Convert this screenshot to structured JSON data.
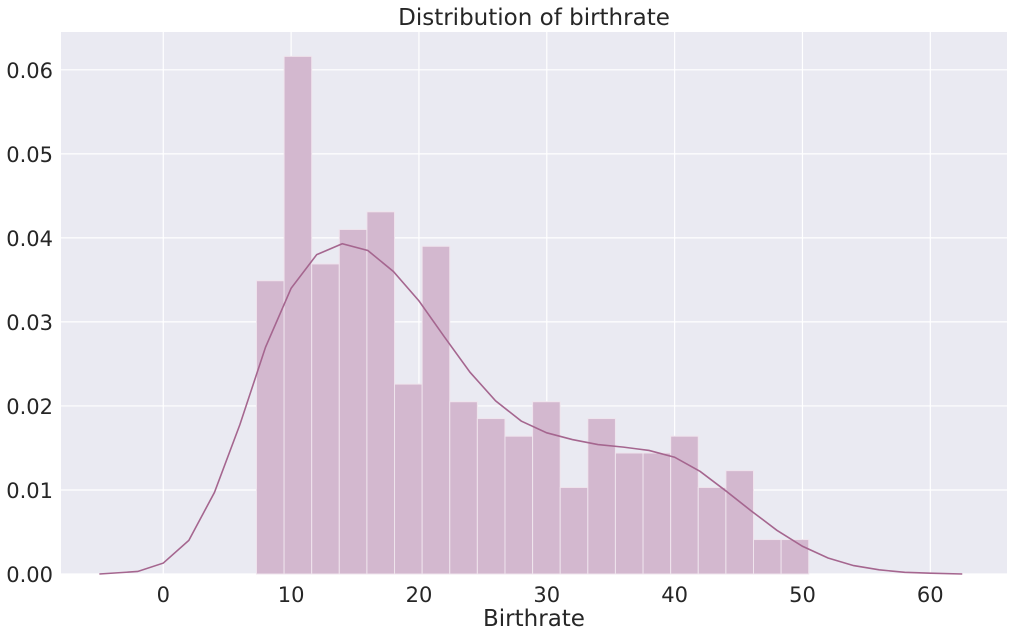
{
  "chart_data": {
    "type": "histogram",
    "title": "Distribution of birthrate",
    "xlabel": "Birthrate",
    "ylabel": "",
    "xlim": [
      -8,
      66
    ],
    "ylim": [
      0,
      0.0645
    ],
    "xticks": [
      0,
      10,
      20,
      30,
      40,
      50,
      60
    ],
    "xtick_labels": [
      "0",
      "10",
      "20",
      "30",
      "40",
      "50",
      "60"
    ],
    "yticks": [
      0.0,
      0.01,
      0.02,
      0.03,
      0.04,
      0.05,
      0.06
    ],
    "ytick_labels": [
      "0.00",
      "0.01",
      "0.02",
      "0.03",
      "0.04",
      "0.05",
      "0.06"
    ],
    "grid": true,
    "bins": [
      {
        "x0": 7.29,
        "x1": 9.45,
        "density": 0.0349
      },
      {
        "x0": 9.45,
        "x1": 11.61,
        "density": 0.0616
      },
      {
        "x0": 11.61,
        "x1": 13.77,
        "density": 0.0369
      },
      {
        "x0": 13.77,
        "x1": 15.93,
        "density": 0.041
      },
      {
        "x0": 15.93,
        "x1": 18.09,
        "density": 0.0431
      },
      {
        "x0": 18.09,
        "x1": 20.25,
        "density": 0.0226
      },
      {
        "x0": 20.25,
        "x1": 22.41,
        "density": 0.039
      },
      {
        "x0": 22.41,
        "x1": 24.57,
        "density": 0.0205
      },
      {
        "x0": 24.57,
        "x1": 26.73,
        "density": 0.0185
      },
      {
        "x0": 26.73,
        "x1": 28.89,
        "density": 0.0164
      },
      {
        "x0": 28.89,
        "x1": 31.05,
        "density": 0.0205
      },
      {
        "x0": 31.05,
        "x1": 33.21,
        "density": 0.0103
      },
      {
        "x0": 33.21,
        "x1": 35.37,
        "density": 0.0185
      },
      {
        "x0": 35.37,
        "x1": 37.53,
        "density": 0.0144
      },
      {
        "x0": 37.53,
        "x1": 39.69,
        "density": 0.0144
      },
      {
        "x0": 39.69,
        "x1": 41.85,
        "density": 0.0164
      },
      {
        "x0": 41.85,
        "x1": 44.01,
        "density": 0.0103
      },
      {
        "x0": 44.01,
        "x1": 46.17,
        "density": 0.0123
      },
      {
        "x0": 46.17,
        "x1": 48.33,
        "density": 0.0041
      },
      {
        "x0": 48.33,
        "x1": 50.49,
        "density": 0.0041
      }
    ],
    "kde": {
      "x": [
        -5,
        -2,
        0,
        2,
        4,
        6,
        8,
        10,
        12,
        14,
        16,
        18,
        20,
        22,
        24,
        26,
        28,
        30,
        32,
        34,
        36,
        38,
        40,
        42,
        44,
        46,
        48,
        50,
        52,
        54,
        56,
        58,
        60,
        62.5
      ],
      "y": [
        0.0,
        0.0003,
        0.0013,
        0.004,
        0.0097,
        0.0178,
        0.027,
        0.034,
        0.038,
        0.0393,
        0.0385,
        0.036,
        0.0325,
        0.0282,
        0.024,
        0.0206,
        0.0182,
        0.0168,
        0.016,
        0.0154,
        0.0151,
        0.0147,
        0.0139,
        0.0122,
        0.0099,
        0.0075,
        0.0052,
        0.0033,
        0.0019,
        0.001,
        0.0005,
        0.0002,
        0.0001,
        0.0
      ]
    },
    "colors": {
      "bar_fill": "#d3b8cf",
      "bar_edge": "#efe4ed",
      "kde_line": "#a5668f",
      "plot_bg": "#eaeaf2",
      "grid": "#ffffff"
    }
  }
}
